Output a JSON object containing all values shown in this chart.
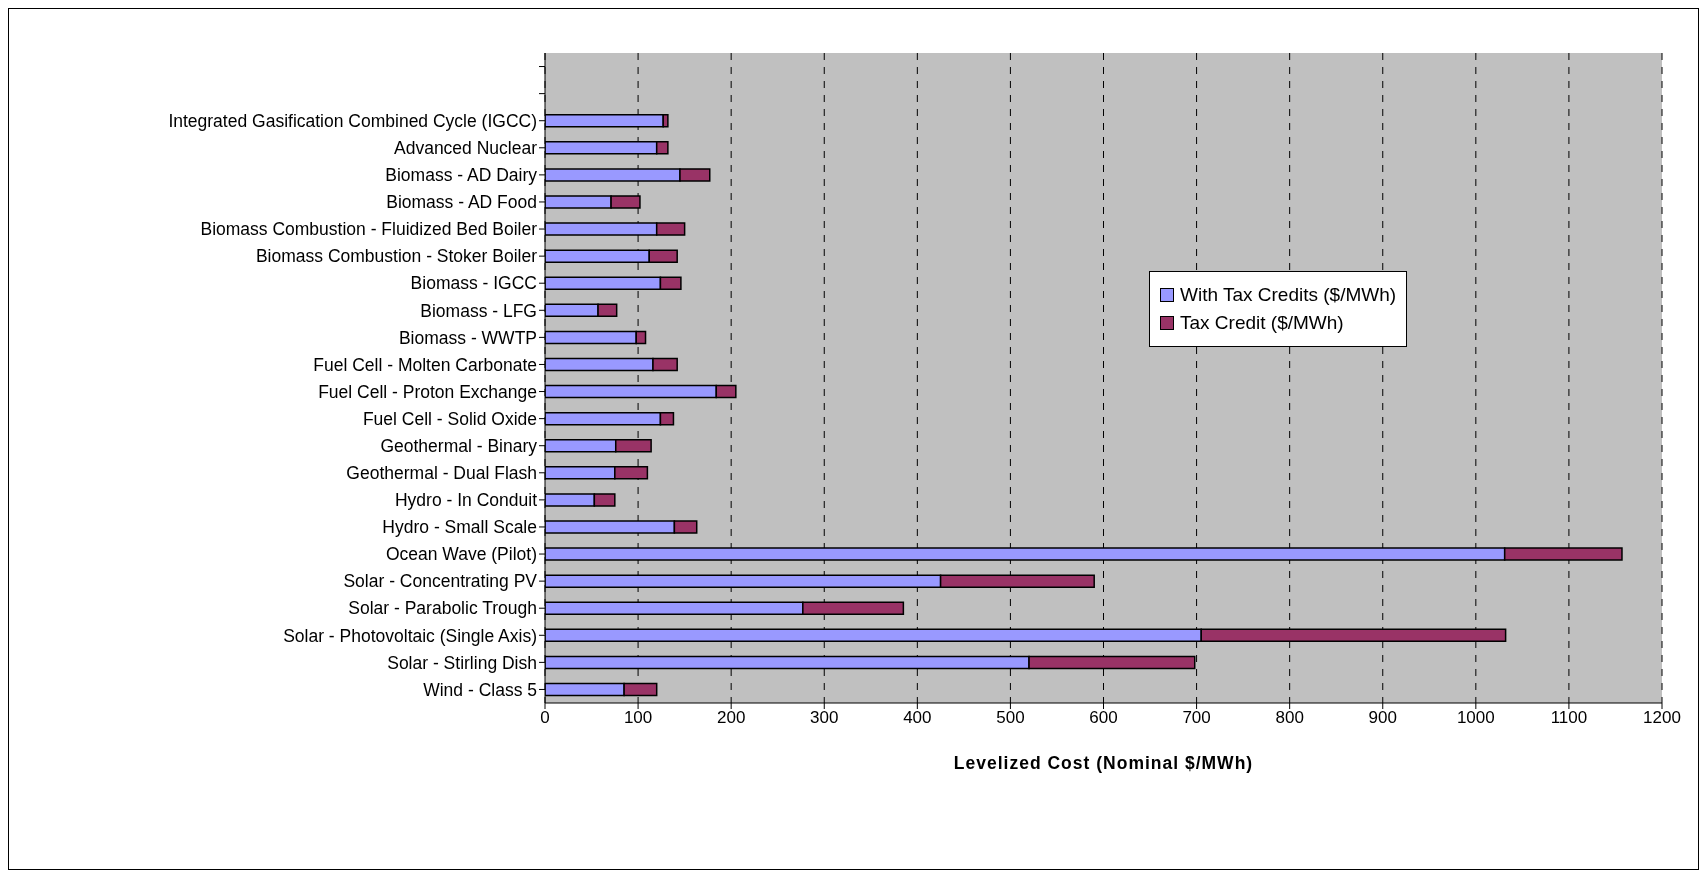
{
  "chart_data": {
    "type": "bar",
    "orientation": "horizontal",
    "stacked": true,
    "xlabel": "Levelized Cost (Nominal $/MWh)",
    "categories": [
      null,
      null,
      "Integrated Gasification Combined Cycle (IGCC)",
      "Advanced Nuclear",
      "Biomass - AD Dairy",
      "Biomass - AD Food",
      "Biomass Combustion - Fluidized Bed Boiler",
      "Biomass Combustion - Stoker Boiler",
      "Biomass - IGCC",
      "Biomass - LFG",
      "Biomass - WWTP",
      "Fuel Cell - Molten Carbonate",
      "Fuel Cell - Proton Exchange",
      "Fuel Cell - Solid Oxide",
      "Geothermal - Binary",
      "Geothermal - Dual Flash",
      "Hydro - In Conduit",
      "Hydro - Small Scale",
      "Ocean Wave (Pilot)",
      "Solar - Concentrating PV",
      "Solar - Parabolic Trough",
      "Solar - Photovoltaic (Single Axis)",
      "Solar - Stirling Dish",
      "Wind - Class 5"
    ],
    "series": [
      {
        "name": "With Tax Credits ($/MWh)",
        "color": "#9999ff",
        "values": [
          null,
          null,
          127,
          120,
          145,
          71,
          120,
          112,
          124,
          57,
          98,
          116,
          184,
          124,
          76,
          75,
          53,
          139,
          1031,
          425,
          277,
          705,
          520,
          85
        ]
      },
      {
        "name": "Tax Credit ($/MWh)",
        "color": "#993366",
        "values": [
          null,
          null,
          5,
          12,
          32,
          31,
          30,
          30,
          22,
          20,
          10,
          26,
          21,
          14,
          38,
          35,
          22,
          24,
          126,
          165,
          108,
          327,
          178,
          35
        ]
      }
    ],
    "xlim": [
      0,
      1200
    ],
    "xticks": [
      0,
      100,
      200,
      300,
      400,
      500,
      600,
      700,
      800,
      900,
      1000,
      1100,
      1200
    ],
    "grid": "x",
    "legend": "right"
  }
}
